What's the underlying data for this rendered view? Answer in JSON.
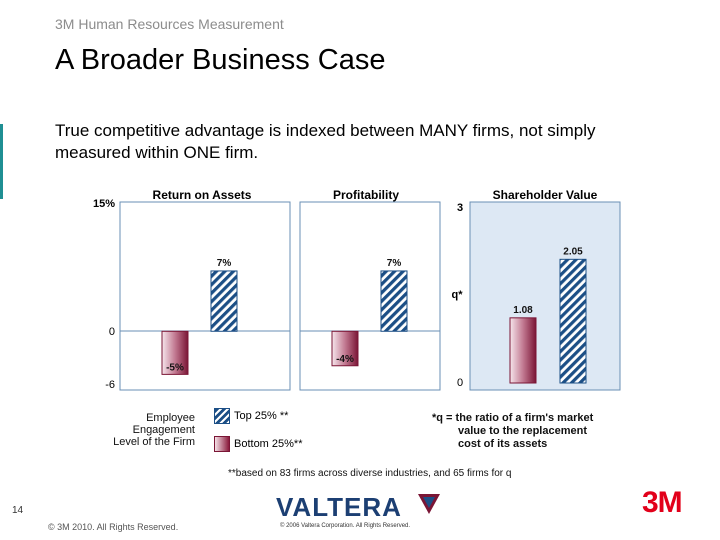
{
  "header": {
    "section": "3M Human Resources Measurement",
    "title": "A Broader Business Case"
  },
  "subtitle": "True competitive advantage is indexed between MANY firms, not simply measured within ONE firm.",
  "chart_data": [
    {
      "type": "bar",
      "title": "Return on Assets",
      "categories": [
        "Bottom 25%**",
        "Top 25% **"
      ],
      "values": [
        -5,
        7
      ],
      "labels": [
        "-5%",
        "7%"
      ],
      "yticks": [
        "15%",
        "0",
        "-6"
      ],
      "ylim": [
        -6,
        15
      ],
      "grid": false
    },
    {
      "type": "bar",
      "title": "Profitability",
      "categories": [
        "Bottom 25%**",
        "Top 25% **"
      ],
      "values": [
        -4,
        7
      ],
      "labels": [
        "-4%",
        "7%"
      ],
      "ylim": [
        -6,
        15
      ],
      "grid": false
    },
    {
      "type": "bar",
      "title": "Shareholder Value",
      "ylabel": "q*",
      "categories": [
        "Bottom 25%**",
        "Top 25% **"
      ],
      "values": [
        1.08,
        2.05
      ],
      "labels": [
        "1.08",
        "2.05"
      ],
      "yticks": [
        "3",
        "0"
      ],
      "ylim": [
        0,
        3
      ],
      "grid": false
    }
  ],
  "legend": {
    "group_label_lines": [
      "Employee",
      "Engagement",
      "Level of the Firm"
    ],
    "top": "Top 25% **",
    "bottom": "Bottom 25%**"
  },
  "q_note": {
    "line1": "*q = the ratio of a firm's market",
    "line2": "value to the replacement",
    "line3": "cost of its assets"
  },
  "footnote": "**based on 83 firms across diverse industries, and 65 firms for q",
  "footer": {
    "page": "14",
    "copyright": "© 3M 2010. All Rights Reserved.",
    "valtera_logo": "VALTERA",
    "valtera_copy": "© 2006 Valtera Corporation. All Rights Reserved.",
    "brand_logo": "3M"
  },
  "colors": {
    "top_bar": "#1c4f86",
    "bottom_bar": "#8a1a3c",
    "panel_shade": "#dde8f4",
    "accent_rule": "#1f8f93",
    "brand_red": "#e2001a"
  }
}
